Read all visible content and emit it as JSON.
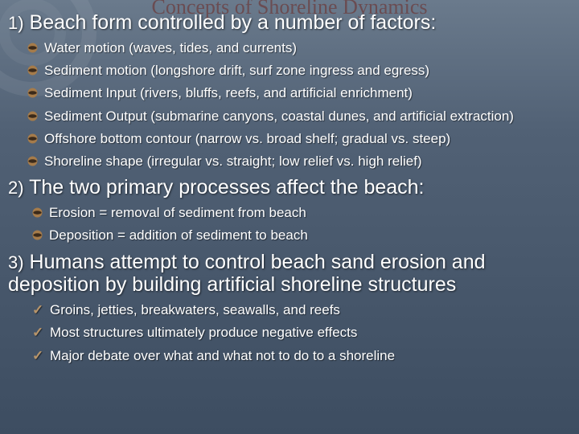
{
  "watermark": "Concepts of Shoreline Dynamics",
  "colors": {
    "bg_top": "#6a7a8c",
    "bg_bottom": "#3d4d61",
    "text": "#ffffff",
    "shadow": "rgba(0,0,0,0.6)",
    "watermark": "#6b3a3a",
    "bullet_outer": "#a57b4a",
    "bullet_inner": "#3b2a1a",
    "check": "#b8956a"
  },
  "section1": {
    "num": "1)",
    "title": "Beach form controlled by a number of factors:",
    "items": [
      "Water motion  (waves, tides, and currents)",
      "Sediment motion  (longshore drift, surf zone ingress and egress)",
      "Sediment Input  (rivers, bluffs, reefs, and artificial enrichment)",
      "Sediment Output  (submarine canyons, coastal dunes, and artificial extraction)",
      "Offshore bottom contour  (narrow vs. broad shelf; gradual vs. steep)",
      "Shoreline shape  (irregular vs. straight;  low relief vs. high relief)"
    ]
  },
  "section2": {
    "num": "2)",
    "title": "The two primary processes affect the beach:",
    "items": [
      "Erosion = removal of sediment from beach",
      "Deposition = addition of sediment to beach"
    ]
  },
  "section3": {
    "num": "3)",
    "title": "Humans attempt to control beach sand erosion and deposition by building artificial shoreline structures",
    "items": [
      "Groins, jetties, breakwaters, seawalls, and reefs",
      "Most structures ultimately produce negative effects",
      "Major debate over what and what not to do to a shoreline"
    ]
  }
}
